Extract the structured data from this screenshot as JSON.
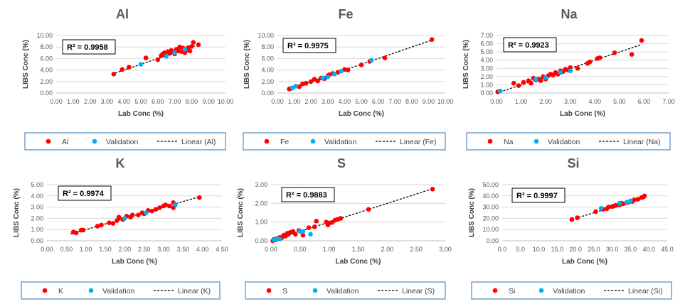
{
  "chart_data": [
    {
      "type": "scatter",
      "title": "Al",
      "xlabel": "Lab Conc (%)",
      "ylabel": "LIBS Conc (%)",
      "xlim": [
        0,
        10
      ],
      "ylim": [
        0,
        10
      ],
      "xticks": [
        "0.00",
        "1.00",
        "2.00",
        "3.00",
        "4.00",
        "5.00",
        "6.00",
        "7.00",
        "8.00",
        "9.00",
        "10.00"
      ],
      "yticks": [
        "0.00",
        "2.00",
        "4.00",
        "6.00",
        "8.00",
        "10.00"
      ],
      "r2": "R² = 0.9958",
      "trend_range": [
        3.3,
        8.5
      ],
      "series": [
        {
          "name": "Al",
          "color": "#ff0000",
          "points": [
            [
              3.4,
              3.3
            ],
            [
              3.9,
              4.1
            ],
            [
              4.3,
              4.5
            ],
            [
              5.3,
              6.1
            ],
            [
              6.0,
              5.8
            ],
            [
              6.2,
              6.5
            ],
            [
              6.3,
              6.8
            ],
            [
              6.4,
              7.0
            ],
            [
              6.6,
              7.2
            ],
            [
              6.7,
              6.9
            ],
            [
              6.8,
              7.4
            ],
            [
              6.9,
              7.1
            ],
            [
              7.0,
              6.8
            ],
            [
              7.1,
              7.6
            ],
            [
              7.2,
              7.3
            ],
            [
              7.3,
              8.0
            ],
            [
              7.4,
              7.2
            ],
            [
              7.5,
              7.8
            ],
            [
              7.6,
              7.0
            ],
            [
              7.7,
              7.5
            ],
            [
              7.8,
              7.9
            ],
            [
              7.9,
              7.3
            ],
            [
              8.0,
              8.1
            ],
            [
              8.1,
              8.8
            ],
            [
              8.4,
              8.4
            ]
          ]
        },
        {
          "name": "Validation",
          "color": "#00b0f0",
          "points": [
            [
              5.0,
              5.0
            ],
            [
              6.5,
              6.4
            ],
            [
              7.0,
              7.0
            ],
            [
              7.6,
              7.6
            ]
          ]
        }
      ]
    },
    {
      "type": "scatter",
      "title": "Fe",
      "xlabel": "Lab Conc (%)",
      "ylabel": "LIBS Conc (%)",
      "xlim": [
        0,
        10
      ],
      "ylim": [
        0,
        10
      ],
      "xticks": [
        "0.00",
        "1.00",
        "2.00",
        "3.00",
        "4.00",
        "5.00",
        "6.00",
        "7.00",
        "8.00",
        "9.00",
        "10.00"
      ],
      "yticks": [
        "0.00",
        "2.00",
        "4.00",
        "6.00",
        "8.00",
        "10.00"
      ],
      "r2": "R² = 0.9975",
      "trend_range": [
        0.6,
        9.3
      ],
      "series": [
        {
          "name": "Fe",
          "color": "#ff0000",
          "points": [
            [
              0.7,
              0.7
            ],
            [
              0.8,
              0.8
            ],
            [
              1.3,
              1.1
            ],
            [
              1.5,
              1.6
            ],
            [
              1.7,
              1.7
            ],
            [
              2.0,
              2.0
            ],
            [
              2.2,
              2.4
            ],
            [
              2.4,
              2.1
            ],
            [
              2.6,
              2.6
            ],
            [
              2.8,
              2.5
            ],
            [
              3.0,
              3.0
            ],
            [
              3.1,
              3.2
            ],
            [
              3.3,
              3.4
            ],
            [
              3.6,
              3.6
            ],
            [
              4.0,
              4.1
            ],
            [
              4.2,
              4.0
            ],
            [
              5.0,
              4.9
            ],
            [
              5.5,
              5.5
            ],
            [
              6.4,
              6.1
            ],
            [
              9.2,
              9.3
            ]
          ]
        },
        {
          "name": "Validation",
          "color": "#00b0f0",
          "points": [
            [
              0.9,
              0.9
            ],
            [
              1.1,
              1.2
            ],
            [
              2.7,
              2.6
            ],
            [
              3.0,
              2.8
            ],
            [
              3.4,
              3.3
            ],
            [
              3.8,
              3.8
            ],
            [
              5.6,
              5.7
            ]
          ]
        }
      ]
    },
    {
      "type": "scatter",
      "title": "Na",
      "xlabel": "Lab Conc (%)",
      "ylabel": "LIBS Conc (%)",
      "xlim": [
        0,
        7
      ],
      "ylim": [
        0,
        7
      ],
      "xticks": [
        "0.00",
        "1.00",
        "2.00",
        "3.00",
        "4.00",
        "5.00",
        "6.00",
        "7.00"
      ],
      "yticks": [
        "0.00",
        "1.00",
        "2.00",
        "3.00",
        "4.00",
        "5.00",
        "6.00",
        "7.00"
      ],
      "r2": "R² = 0.9923",
      "trend_range": [
        0.0,
        5.9
      ],
      "series": [
        {
          "name": "Na",
          "color": "#ff0000",
          "points": [
            [
              0.05,
              0.15
            ],
            [
              0.7,
              1.2
            ],
            [
              0.9,
              0.9
            ],
            [
              1.1,
              1.3
            ],
            [
              1.3,
              1.5
            ],
            [
              1.4,
              1.2
            ],
            [
              1.5,
              1.8
            ],
            [
              1.6,
              1.6
            ],
            [
              1.7,
              1.7
            ],
            [
              1.8,
              1.5
            ],
            [
              1.9,
              2.0
            ],
            [
              2.0,
              1.7
            ],
            [
              2.1,
              2.1
            ],
            [
              2.2,
              2.3
            ],
            [
              2.3,
              2.2
            ],
            [
              2.4,
              2.5
            ],
            [
              2.5,
              2.3
            ],
            [
              2.6,
              2.7
            ],
            [
              2.7,
              2.6
            ],
            [
              2.8,
              2.9
            ],
            [
              2.9,
              2.8
            ],
            [
              3.0,
              3.1
            ],
            [
              3.3,
              3.0
            ],
            [
              3.7,
              3.6
            ],
            [
              3.8,
              3.8
            ],
            [
              4.1,
              4.2
            ],
            [
              4.2,
              4.3
            ],
            [
              4.8,
              4.9
            ],
            [
              5.5,
              4.7
            ],
            [
              5.9,
              6.4
            ]
          ]
        },
        {
          "name": "Validation",
          "color": "#00b0f0",
          "points": [
            [
              0.15,
              0.25
            ],
            [
              1.6,
              1.7
            ],
            [
              2.0,
              1.9
            ],
            [
              2.6,
              2.5
            ],
            [
              3.0,
              2.7
            ]
          ]
        }
      ]
    },
    {
      "type": "scatter",
      "title": "K",
      "xlabel": "Lab Conc (%)",
      "ylabel": "LIBS Conc (%)",
      "xlim": [
        0,
        4.5
      ],
      "ylim": [
        0,
        5
      ],
      "xticks": [
        "0.00",
        "0.50",
        "1.00",
        "1.50",
        "2.00",
        "2.50",
        "3.00",
        "3.50",
        "4.00",
        "4.50"
      ],
      "yticks": [
        "0.00",
        "1.00",
        "2.00",
        "3.00",
        "4.00",
        "5.00"
      ],
      "r2": "R² = 0.9974",
      "trend_range": [
        0.6,
        3.95
      ],
      "series": [
        {
          "name": "K",
          "color": "#ff0000",
          "points": [
            [
              0.68,
              0.78
            ],
            [
              0.75,
              0.7
            ],
            [
              0.88,
              0.95
            ],
            [
              0.93,
              0.95
            ],
            [
              1.3,
              1.3
            ],
            [
              1.4,
              1.4
            ],
            [
              1.6,
              1.6
            ],
            [
              1.7,
              1.55
            ],
            [
              1.8,
              1.8
            ],
            [
              1.85,
              2.1
            ],
            [
              1.95,
              1.9
            ],
            [
              2.05,
              2.2
            ],
            [
              2.15,
              2.1
            ],
            [
              2.2,
              2.3
            ],
            [
              2.35,
              2.3
            ],
            [
              2.45,
              2.5
            ],
            [
              2.5,
              2.4
            ],
            [
              2.6,
              2.7
            ],
            [
              2.7,
              2.65
            ],
            [
              2.8,
              2.8
            ],
            [
              2.9,
              2.95
            ],
            [
              3.0,
              3.1
            ],
            [
              3.05,
              3.2
            ],
            [
              3.15,
              3.1
            ],
            [
              3.25,
              3.4
            ],
            [
              3.25,
              2.95
            ],
            [
              3.92,
              3.85
            ]
          ]
        },
        {
          "name": "Validation",
          "color": "#00b0f0",
          "points": [
            [
              2.0,
              2.0
            ],
            [
              2.55,
              2.5
            ],
            [
              3.3,
              3.2
            ]
          ]
        }
      ]
    },
    {
      "type": "scatter",
      "title": "S",
      "xlabel": "Lab Conc (%)",
      "ylabel": "LIBS Conc (%)",
      "xlim": [
        0,
        3
      ],
      "ylim": [
        0,
        3
      ],
      "xticks": [
        "0.00",
        "0.50",
        "1.00",
        "1.50",
        "2.00",
        "2.50",
        "3.00"
      ],
      "yticks": [
        "0.00",
        "1.00",
        "2.00",
        "3.00"
      ],
      "r2": "R² = 0.9883",
      "trend_range": [
        0.0,
        2.78
      ],
      "series": [
        {
          "name": "S",
          "color": "#ff0000",
          "points": [
            [
              0.03,
              0.0
            ],
            [
              0.05,
              0.08
            ],
            [
              0.08,
              0.05
            ],
            [
              0.1,
              0.12
            ],
            [
              0.12,
              0.1
            ],
            [
              0.15,
              0.18
            ],
            [
              0.18,
              0.15
            ],
            [
              0.2,
              0.22
            ],
            [
              0.22,
              0.3
            ],
            [
              0.25,
              0.25
            ],
            [
              0.28,
              0.4
            ],
            [
              0.3,
              0.35
            ],
            [
              0.33,
              0.45
            ],
            [
              0.38,
              0.5
            ],
            [
              0.42,
              0.35
            ],
            [
              0.48,
              0.55
            ],
            [
              0.55,
              0.3
            ],
            [
              0.65,
              0.7
            ],
            [
              0.75,
              0.75
            ],
            [
              0.78,
              1.05
            ],
            [
              0.95,
              1.0
            ],
            [
              0.98,
              0.85
            ],
            [
              1.0,
              0.95
            ],
            [
              1.05,
              0.98
            ],
            [
              1.1,
              1.1
            ],
            [
              1.15,
              1.15
            ],
            [
              1.2,
              1.2
            ],
            [
              1.68,
              1.68
            ],
            [
              2.78,
              2.76
            ]
          ]
        },
        {
          "name": "Validation",
          "color": "#00b0f0",
          "points": [
            [
              0.05,
              0.05
            ],
            [
              0.1,
              0.1
            ],
            [
              0.15,
              0.1
            ],
            [
              0.5,
              0.5
            ],
            [
              0.55,
              0.5
            ],
            [
              0.68,
              0.35
            ]
          ]
        }
      ]
    },
    {
      "type": "scatter",
      "title": "Si",
      "xlabel": "Lab Conc (%)",
      "ylabel": "LIBS Conc (%)",
      "xlim": [
        0,
        45
      ],
      "ylim": [
        0,
        50
      ],
      "xticks": [
        "0.0",
        "5.0",
        "10.0",
        "15.0",
        "20.0",
        "25.0",
        "30.0",
        "35.0",
        "40.0",
        "45.0"
      ],
      "yticks": [
        "0.00",
        "10.00",
        "20.00",
        "30.00",
        "40.00",
        "50.00"
      ],
      "r2": "R² = 0.9997",
      "trend_range": [
        19,
        39
      ],
      "series": [
        {
          "name": "Si",
          "color": "#ff0000",
          "points": [
            [
              19.0,
              19.0
            ],
            [
              20.5,
              20.5
            ],
            [
              25.5,
              26.0
            ],
            [
              27.5,
              28.0
            ],
            [
              28.5,
              28.5
            ],
            [
              29.0,
              30.0
            ],
            [
              30.0,
              30.5
            ],
            [
              30.5,
              31.0
            ],
            [
              31.0,
              31.5
            ],
            [
              32.0,
              32.0
            ],
            [
              32.5,
              33.5
            ],
            [
              33.0,
              33.0
            ],
            [
              34.0,
              34.0
            ],
            [
              34.5,
              34.5
            ],
            [
              35.0,
              35.5
            ],
            [
              35.5,
              35.0
            ],
            [
              36.0,
              36.5
            ],
            [
              37.0,
              37.0
            ],
            [
              38.0,
              38.5
            ],
            [
              38.5,
              39.0
            ],
            [
              38.8,
              40.0
            ]
          ]
        },
        {
          "name": "Validation",
          "color": "#00b0f0",
          "points": [
            [
              27.0,
              29.0
            ],
            [
              32.0,
              33.5
            ],
            [
              34.0,
              34.5
            ],
            [
              35.0,
              35.5
            ]
          ]
        }
      ]
    }
  ],
  "legend_trend_labels": [
    "Linear (Al)",
    "Linear (Fe)",
    "Linear (Na)",
    "Linear (K)",
    "Linear (S)",
    "Linear (Si)"
  ]
}
